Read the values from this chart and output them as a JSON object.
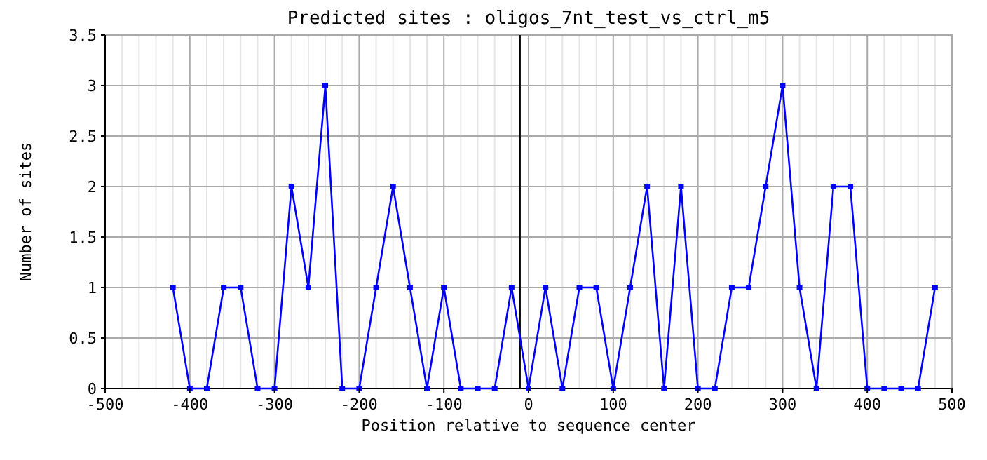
{
  "chart_data": {
    "type": "line",
    "title": "Predicted sites : oligos_7nt_test_vs_ctrl_m5",
    "xlabel": "Position relative to sequence center",
    "ylabel": "Number of sites",
    "x": [
      -420,
      -400,
      -380,
      -360,
      -340,
      -320,
      -300,
      -280,
      -260,
      -240,
      -220,
      -200,
      -180,
      -160,
      -140,
      -120,
      -100,
      -80,
      -60,
      -40,
      -20,
      0,
      20,
      40,
      60,
      80,
      100,
      120,
      140,
      160,
      180,
      200,
      220,
      240,
      260,
      280,
      300,
      320,
      340,
      360,
      380,
      400,
      420,
      440,
      460,
      480
    ],
    "series": [
      {
        "color": "#0000ff",
        "values": [
          1,
          0,
          0,
          1,
          1,
          0,
          0,
          2,
          1,
          3,
          0,
          0,
          1,
          2,
          1,
          0,
          1,
          0,
          0,
          0,
          1,
          0,
          1,
          0,
          1,
          1,
          0,
          1,
          2,
          0,
          2,
          0,
          0,
          1,
          1,
          2,
          3,
          1,
          0,
          2,
          2,
          0,
          0,
          0,
          0,
          1
        ]
      }
    ],
    "xlim": [
      -500,
      500
    ],
    "xticks": [
      -500,
      -400,
      -300,
      -200,
      -100,
      0,
      100,
      200,
      300,
      400,
      500
    ],
    "ylim": [
      0,
      3.5
    ],
    "yticks": [
      0,
      0.5,
      1,
      1.5,
      2,
      2.5,
      3,
      3.5
    ],
    "ref_lines": [
      {
        "axis": "x",
        "value": -10,
        "color": "#000000"
      }
    ],
    "grid": true,
    "marker": "square",
    "line_style": "solid"
  }
}
